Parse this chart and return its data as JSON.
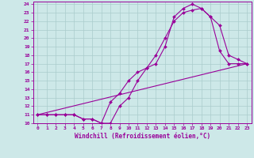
{
  "xlabel": "Windchill (Refroidissement éolien,°C)",
  "bg_color": "#cde8e8",
  "line_color": "#990099",
  "grid_color": "#aacccc",
  "xlim": [
    -0.5,
    23.5
  ],
  "ylim": [
    10,
    24.3
  ],
  "xticks": [
    0,
    1,
    2,
    3,
    4,
    5,
    6,
    7,
    8,
    9,
    10,
    11,
    12,
    13,
    14,
    15,
    16,
    17,
    18,
    19,
    20,
    21,
    22,
    23
  ],
  "yticks": [
    10,
    11,
    12,
    13,
    14,
    15,
    16,
    17,
    18,
    19,
    20,
    21,
    22,
    23,
    24
  ],
  "line1_x": [
    0,
    1,
    2,
    3,
    4,
    5,
    6,
    7,
    8,
    9,
    10,
    11,
    12,
    13,
    14,
    15,
    16,
    17,
    18,
    19,
    20,
    21,
    22,
    23
  ],
  "line1_y": [
    11,
    11,
    11,
    11,
    11,
    10.5,
    10.5,
    10,
    10,
    12,
    13,
    15,
    16.5,
    18,
    20,
    22,
    23,
    23.3,
    23.5,
    22.5,
    21.5,
    18,
    17.5,
    17
  ],
  "line2_x": [
    0,
    1,
    2,
    3,
    4,
    5,
    6,
    7,
    8,
    9,
    10,
    11,
    12,
    13,
    14,
    15,
    16,
    17,
    18,
    19,
    20,
    21,
    22,
    23
  ],
  "line2_y": [
    11,
    11,
    11,
    11,
    11,
    10.5,
    10.5,
    10,
    12.5,
    13.5,
    15,
    16,
    16.5,
    17,
    19,
    22.5,
    23.5,
    24,
    23.5,
    22.5,
    18.5,
    17,
    17,
    17
  ],
  "line3_x": [
    0,
    23
  ],
  "line3_y": [
    11,
    17
  ],
  "marker_size": 2.0,
  "line_width": 0.8
}
